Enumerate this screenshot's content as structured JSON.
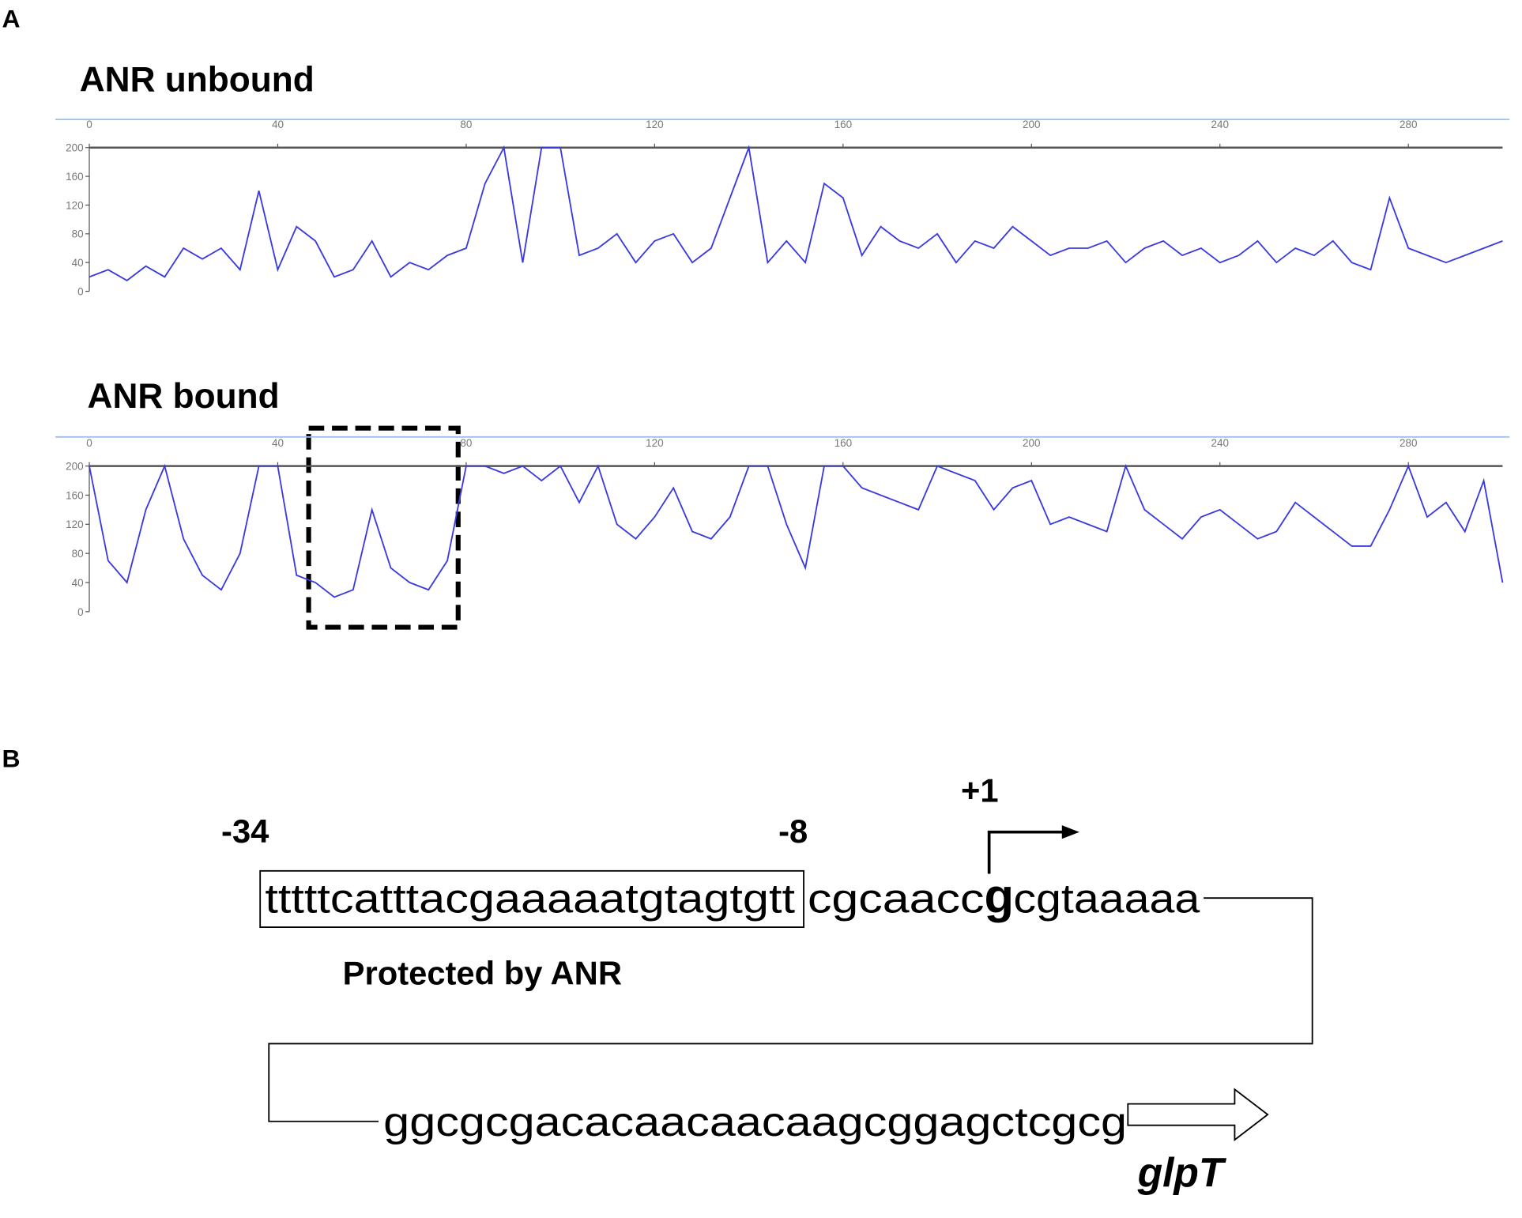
{
  "panel_labels": [
    "A",
    "B"
  ],
  "chart_data": [
    {
      "type": "line",
      "title": "ANR unbound",
      "color": "#3a3ae0",
      "x": [
        0,
        4,
        8,
        12,
        16,
        20,
        24,
        28,
        32,
        36,
        40,
        44,
        48,
        52,
        56,
        60,
        64,
        68,
        72,
        76,
        80,
        84,
        88,
        92,
        96,
        100,
        104,
        108,
        112,
        116,
        120,
        124,
        128,
        132,
        136,
        140,
        144,
        148,
        152,
        156,
        160,
        164,
        168,
        172,
        176,
        180,
        184,
        188,
        192,
        196,
        200,
        204,
        208,
        212,
        216,
        220,
        224,
        228,
        232,
        236,
        240,
        244,
        248,
        252,
        256,
        260,
        264,
        268,
        272,
        276,
        280,
        284,
        288,
        292,
        296,
        300
      ],
      "values": [
        20,
        30,
        15,
        35,
        20,
        60,
        45,
        60,
        30,
        140,
        30,
        90,
        70,
        20,
        30,
        70,
        20,
        40,
        30,
        50,
        60,
        150,
        200,
        40,
        200,
        200,
        50,
        60,
        80,
        40,
        70,
        80,
        40,
        60,
        130,
        200,
        40,
        70,
        40,
        150,
        130,
        50,
        90,
        70,
        60,
        80,
        40,
        70,
        60,
        90,
        70,
        50,
        60,
        60,
        70,
        40,
        60,
        70,
        50,
        60,
        40,
        50,
        70,
        40,
        60,
        50,
        70,
        40,
        30,
        130,
        60,
        50,
        40,
        50,
        60,
        70
      ],
      "xlim": [
        0,
        300
      ],
      "ylim": [
        0,
        200
      ],
      "xticks": [
        0,
        40,
        80,
        120,
        160,
        200,
        240,
        280
      ],
      "yticks": [
        0,
        40,
        80,
        120,
        160,
        200
      ]
    },
    {
      "type": "line",
      "title": "ANR bound",
      "color": "#3a3ae0",
      "x": [
        0,
        4,
        8,
        12,
        16,
        20,
        24,
        28,
        32,
        36,
        40,
        44,
        48,
        52,
        56,
        60,
        64,
        68,
        72,
        76,
        80,
        84,
        88,
        92,
        96,
        100,
        104,
        108,
        112,
        116,
        120,
        124,
        128,
        132,
        136,
        140,
        144,
        148,
        152,
        156,
        160,
        164,
        168,
        172,
        176,
        180,
        184,
        188,
        192,
        196,
        200,
        204,
        208,
        212,
        216,
        220,
        224,
        228,
        232,
        236,
        240,
        244,
        248,
        252,
        256,
        260,
        264,
        268,
        272,
        276,
        280,
        284,
        288,
        292,
        296,
        300
      ],
      "values": [
        200,
        70,
        40,
        140,
        200,
        100,
        50,
        30,
        80,
        200,
        200,
        50,
        40,
        20,
        30,
        140,
        60,
        40,
        30,
        70,
        200,
        200,
        190,
        200,
        180,
        200,
        150,
        200,
        120,
        100,
        130,
        170,
        110,
        100,
        130,
        200,
        200,
        120,
        60,
        200,
        200,
        170,
        160,
        150,
        140,
        200,
        190,
        180,
        140,
        170,
        180,
        120,
        130,
        120,
        110,
        200,
        140,
        120,
        100,
        130,
        140,
        120,
        100,
        110,
        150,
        130,
        110,
        90,
        90,
        140,
        200,
        130,
        150,
        110,
        180,
        40
      ],
      "xlim": [
        0,
        300
      ],
      "ylim": [
        0,
        200
      ],
      "xticks": [
        0,
        40,
        80,
        120,
        160,
        200,
        240,
        280
      ],
      "yticks": [
        0,
        40,
        80,
        120,
        160,
        200
      ]
    }
  ],
  "sequence": {
    "start_position": "-34",
    "end_protected": "-8",
    "tss": "+1",
    "protected_seq": "tttttcatttacgaaaaatgtagtgtt",
    "seq_after": "cgcaacc",
    "tss_base": "g",
    "seq_after_tss": "cgtaaaaa",
    "protected_label": "Protected by ANR",
    "seq_line2": "ggcgcgacacaacaacaagcggagctcgcg",
    "gene": "glpT"
  }
}
